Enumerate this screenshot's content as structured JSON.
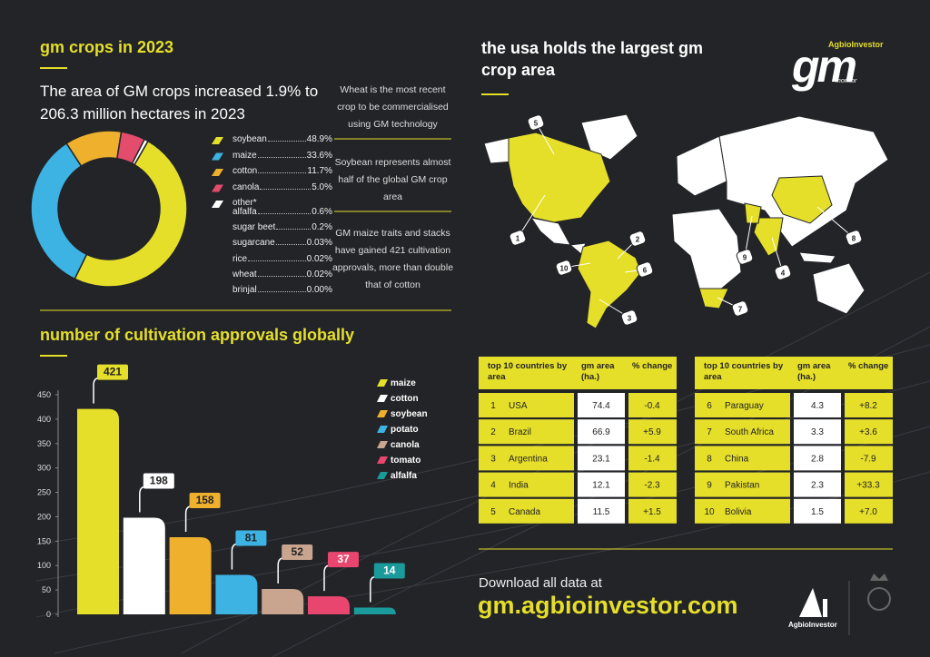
{
  "chart_data": [
    {
      "type": "pie",
      "title": "gm crops in 2023",
      "subtitle": "The area of GM crops increased 1.9% to 206.3 million hectares in 2023",
      "categories": [
        "soybean",
        "maize",
        "cotton",
        "canola",
        "other*"
      ],
      "values": [
        48.9,
        33.6,
        11.7,
        5.0,
        0.8
      ],
      "value_labels": [
        "48.9%",
        "33.6%",
        "11.7%",
        "5.0%",
        null
      ],
      "colors": [
        "#e6df2a",
        "#3db3e3",
        "#efb12d",
        "#e44c6e",
        "#ffffff"
      ]
    },
    {
      "type": "bar",
      "title": "number of cultivation approvals globally",
      "categories": [
        "maize",
        "cotton",
        "soybean",
        "potato",
        "canola",
        "tomato",
        "alfalfa"
      ],
      "values": [
        421,
        198,
        158,
        81,
        52,
        37,
        14
      ],
      "colors": [
        "#e6df2a",
        "#ffffff",
        "#efb12d",
        "#3db3e3",
        "#c9a58f",
        "#e8466e",
        "#1a9a9a"
      ],
      "ylim": [
        0,
        450
      ],
      "yticks": [
        0,
        50,
        100,
        150,
        200,
        250,
        300,
        350,
        400,
        450
      ]
    }
  ],
  "other_breakdown": [
    {
      "name": "alfalfa",
      "label": "0.6%"
    },
    {
      "name": "sugar beet",
      "label": "0.2%"
    },
    {
      "name": "sugarcane",
      "label": "0.03%"
    },
    {
      "name": "rice",
      "label": "0.02%"
    },
    {
      "name": "wheat",
      "label": "0.02%"
    },
    {
      "name": "brinjal",
      "label": "0.00%"
    }
  ],
  "notes": [
    "Wheat is the most recent crop to be commercialised using GM technology",
    "Soybean represents almost half of the global GM crop area",
    "GM maize traits and stacks have gained 421 cultivation approvals, more than double that of cotton"
  ],
  "map": {
    "title": "the usa holds the largest gm crop area",
    "markers": [
      "5",
      "1",
      "2",
      "10",
      "6",
      "3",
      "7",
      "4",
      "9",
      "8"
    ]
  },
  "logo": {
    "brand": "AgbioInvestor",
    "mark": "gm",
    "sub": "monitor"
  },
  "tables": [
    {
      "header": [
        "top 10 countries by area",
        "gm area (ha.)",
        "% change"
      ],
      "rows": [
        [
          "1",
          "USA",
          "74.4",
          "-0.4"
        ],
        [
          "2",
          "Brazil",
          "66.9",
          "+5.9"
        ],
        [
          "3",
          "Argentina",
          "23.1",
          "-1.4"
        ],
        [
          "4",
          "India",
          "12.1",
          "-2.3"
        ],
        [
          "5",
          "Canada",
          "11.5",
          "+1.5"
        ]
      ]
    },
    {
      "header": [
        "top 10 countries by area",
        "gm area (ha.)",
        "% change"
      ],
      "rows": [
        [
          "6",
          "Paraguay",
          "4.3",
          "+8.2"
        ],
        [
          "7",
          "South Africa",
          "3.3",
          "+3.6"
        ],
        [
          "8",
          "China",
          "2.8",
          "-7.9"
        ],
        [
          "9",
          "Pakistan",
          "2.3",
          "+33.3"
        ],
        [
          "10",
          "Bolivia",
          "1.5",
          "+7.0"
        ]
      ]
    }
  ],
  "footer": {
    "prompt": "Download all data at",
    "url": "gm.agbioinvestor.com",
    "brand": "AgbioInvestor"
  }
}
